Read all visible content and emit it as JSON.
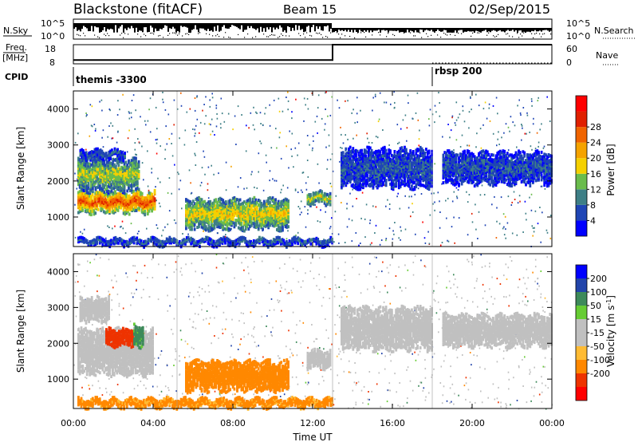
{
  "header": {
    "title": "Blackstone (fitACF)",
    "beam": "Beam 15",
    "date": "02/Sep/2015"
  },
  "summary": {
    "nsky_label": "N.Sky",
    "nsearch_label": "N.Search",
    "nsky_ticks": [
      "10^5",
      "10^0"
    ],
    "nsearch_ticks": [
      "10^5",
      "10^0"
    ],
    "freq_label": "Freq.",
    "freq_unit": "[MHz]",
    "freq_ticks": [
      "18",
      "8"
    ],
    "nave_label": "Nave",
    "nave_ticks": [
      "60",
      "0"
    ],
    "cpid_label": "CPID",
    "cpid_programs": [
      {
        "name": "themis -3300",
        "start": 0.0,
        "end": 18.0
      },
      {
        "name": "rbsp 200",
        "start": 18.0,
        "end": 24.0
      }
    ],
    "freq_values": [
      {
        "start": 0.0,
        "end": 13.0,
        "mhz": 10.0
      },
      {
        "start": 13.0,
        "end": 24.0,
        "mhz": 18.0
      }
    ]
  },
  "colors": {
    "power_scale": [
      "#0000ff",
      "#1f45b5",
      "#3e7f86",
      "#6abc4c",
      "#f5d000",
      "#f5a300",
      "#f06400",
      "#e02000",
      "#ff0000"
    ],
    "velocity_scale": [
      "#ff0000",
      "#ee3300",
      "#ff8800",
      "#ffbb33",
      "#c0c0c0",
      "#c0c0c0",
      "#66cc33",
      "#3d8a5a",
      "#2244aa",
      "#0000ff"
    ],
    "gray_scatter": "#c0c0c0"
  },
  "chart_data": [
    {
      "type": "heatmap",
      "name": "power",
      "ylabel": "Slant Range [km]",
      "xlabel": "Time UT",
      "xlim": [
        0,
        24
      ],
      "ylim": [
        180,
        4500
      ],
      "x_ticks": [
        "00:00",
        "04:00",
        "08:00",
        "12:00",
        "16:00",
        "20:00",
        "00:00"
      ],
      "y_ticks": [
        1000,
        2000,
        3000,
        4000
      ],
      "colorbar": {
        "label": "Power [dB]",
        "ticks": [
          "4",
          "8",
          "12",
          "16",
          "20",
          "24",
          "28"
        ],
        "range": [
          0,
          30
        ]
      },
      "features": [
        {
          "t0": 0.2,
          "t1": 4.1,
          "r0": 1100,
          "r1": 1700,
          "level": 24
        },
        {
          "t0": 0.2,
          "t1": 3.3,
          "r0": 1700,
          "r1": 2600,
          "level": 14
        },
        {
          "t0": 0.3,
          "t1": 2.6,
          "r0": 2600,
          "r1": 2850,
          "level": 6
        },
        {
          "t0": 5.6,
          "t1": 10.8,
          "r0": 650,
          "r1": 1500,
          "level": 16
        },
        {
          "t0": 11.7,
          "t1": 12.9,
          "r0": 1350,
          "r1": 1700,
          "level": 14
        },
        {
          "t0": 13.4,
          "t1": 18.0,
          "r0": 1800,
          "r1": 2900,
          "level": 6
        },
        {
          "t0": 18.5,
          "t1": 24.0,
          "r0": 1900,
          "r1": 2800,
          "level": 6
        },
        {
          "t0": 0.2,
          "t1": 13.0,
          "r0": 200,
          "r1": 400,
          "level": 6
        }
      ]
    },
    {
      "type": "heatmap",
      "name": "velocity",
      "ylabel": "Slant Range [km]",
      "xlabel": "Time UT",
      "xlim": [
        0,
        24
      ],
      "ylim": [
        180,
        4500
      ],
      "x_ticks": [
        "00:00",
        "04:00",
        "08:00",
        "12:00",
        "16:00",
        "20:00",
        "00:00"
      ],
      "y_ticks": [
        1000,
        2000,
        3000,
        4000
      ],
      "colorbar": {
        "label": "Velocity [m s^-1]",
        "ticks": [
          "200",
          "100",
          "50",
          "15",
          "-15",
          "-50",
          "-100",
          "-200"
        ]
      },
      "features": [
        {
          "t0": 0.2,
          "t1": 4.0,
          "r0": 1100,
          "r1": 2400,
          "value": 0
        },
        {
          "t0": 1.6,
          "t1": 3.0,
          "r0": 1900,
          "r1": 2400,
          "value": -120
        },
        {
          "t0": 3.0,
          "t1": 3.5,
          "r0": 1900,
          "r1": 2500,
          "value": 60
        },
        {
          "t0": 0.3,
          "t1": 1.8,
          "r0": 2600,
          "r1": 3300,
          "value": 0
        },
        {
          "t0": 5.6,
          "t1": 10.8,
          "r0": 650,
          "r1": 1500,
          "value": -70
        },
        {
          "t0": 11.7,
          "t1": 12.9,
          "r0": 1300,
          "r1": 1800,
          "value": 0
        },
        {
          "t0": 13.4,
          "t1": 18.0,
          "r0": 1800,
          "r1": 3000,
          "value": 0
        },
        {
          "t0": 18.5,
          "t1": 24.0,
          "r0": 1900,
          "r1": 2800,
          "value": 0
        },
        {
          "t0": 0.2,
          "t1": 13.0,
          "r0": 200,
          "r1": 450,
          "value": -60
        }
      ]
    }
  ]
}
